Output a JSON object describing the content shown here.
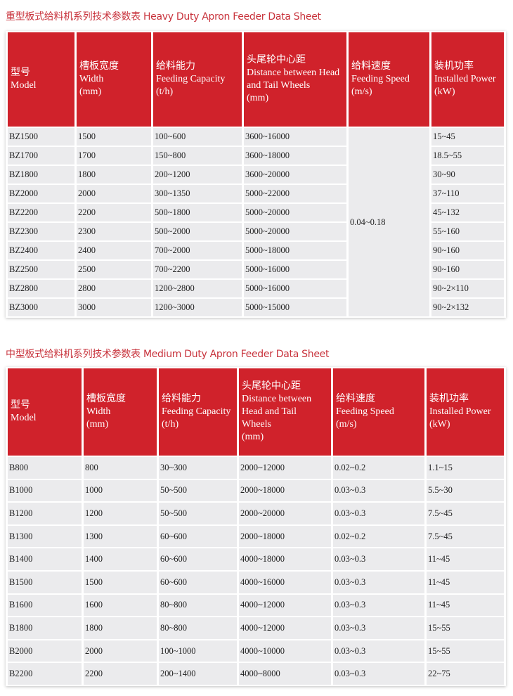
{
  "heavy": {
    "title": "重型板式给料机系列技术参数表 Heavy Duty Apron Feeder Data Sheet",
    "headers": [
      [
        "型号",
        "Model"
      ],
      [
        "槽板宽度",
        "Width",
        "(mm)"
      ],
      [
        "给料能力",
        "Feeding Capacity",
        "(t/h)"
      ],
      [
        "头尾轮中心距",
        "Distance between Head",
        "and Tail Wheels",
        "(mm)"
      ],
      [
        "给料速度",
        "Feeding Speed",
        "(m/s)"
      ],
      [
        "装机功率",
        "Installed Power",
        "(kW)"
      ]
    ],
    "shared_speed": "0.04~0.18",
    "rows": [
      [
        "BZ1500",
        "1500",
        "100~600",
        "3600~16000",
        "15~45"
      ],
      [
        "BZ1700",
        "1700",
        "150~800",
        "3600~18000",
        "18.5~55"
      ],
      [
        "BZ1800",
        "1800",
        "200~1200",
        "3600~20000",
        "30~90"
      ],
      [
        "BZ2000",
        "2000",
        "300~1350",
        "5000~22000",
        "37~110"
      ],
      [
        "BZ2200",
        "2200",
        "500~1800",
        "5000~20000",
        "45~132"
      ],
      [
        "BZ2300",
        "2300",
        "500~2000",
        "5000~20000",
        "55~160"
      ],
      [
        "BZ2400",
        "2400",
        "700~2000",
        "5000~18000",
        "90~160"
      ],
      [
        "BZ2500",
        "2500",
        "700~2200",
        "5000~16000",
        "90~160"
      ],
      [
        "BZ2800",
        "2800",
        "1200~2800",
        "5000~16000",
        "90~2×110"
      ],
      [
        "BZ3000",
        "3000",
        "1200~3000",
        "5000~15000",
        "90~2×132"
      ]
    ]
  },
  "medium": {
    "title": "中型板式给料机系列技术参数表 Medium Duty Apron Feeder Data Sheet",
    "headers": [
      [
        "型号",
        "Model"
      ],
      [
        "槽板宽度",
        "Width",
        "(mm)"
      ],
      [
        "给料能力",
        "Feeding Capacity",
        "(t/h)"
      ],
      [
        "头尾轮中心距",
        "Distance between",
        "Head and Tail",
        "Wheels",
        "(mm)"
      ],
      [
        "给料速度",
        "Feeding Speed",
        "(m/s)"
      ],
      [
        "装机功率",
        "Installed Power",
        "(kW)"
      ]
    ],
    "rows": [
      [
        "B800",
        "800",
        "30~300",
        "2000~12000",
        "0.02~0.2",
        "1.1~15"
      ],
      [
        "B1000",
        "1000",
        "50~500",
        "2000~18000",
        "0.03~0.3",
        "5.5~30"
      ],
      [
        "B1200",
        "1200",
        "50~500",
        "2000~20000",
        "0.03~0.3",
        "7.5~45"
      ],
      [
        "B1300",
        "1300",
        "60~600",
        "2000~18000",
        "0.02~0.2",
        "7.5~45"
      ],
      [
        "B1400",
        "1400",
        "60~600",
        "4000~18000",
        "0.03~0.3",
        "11~45"
      ],
      [
        "B1500",
        "1500",
        "60~600",
        "4000~16000",
        "0.03~0.3",
        "11~45"
      ],
      [
        "B1600",
        "1600",
        "80~800",
        "4000~12000",
        "0.03~0.3",
        "11~45"
      ],
      [
        "B1800",
        "1800",
        "80~800",
        "4000~12000",
        "0.03~0.3",
        "15~55"
      ],
      [
        "B2000",
        "2000",
        "100~1000",
        "4000~10000",
        "0.03~0.3",
        "15~55"
      ],
      [
        "B2200",
        "2200",
        "200~1400",
        "4000~8000",
        "0.03~0.3",
        "22~75"
      ]
    ]
  },
  "colors": {
    "header_bg": "#d0222b",
    "title": "#c8333c",
    "row_bg": "#ebebed"
  }
}
